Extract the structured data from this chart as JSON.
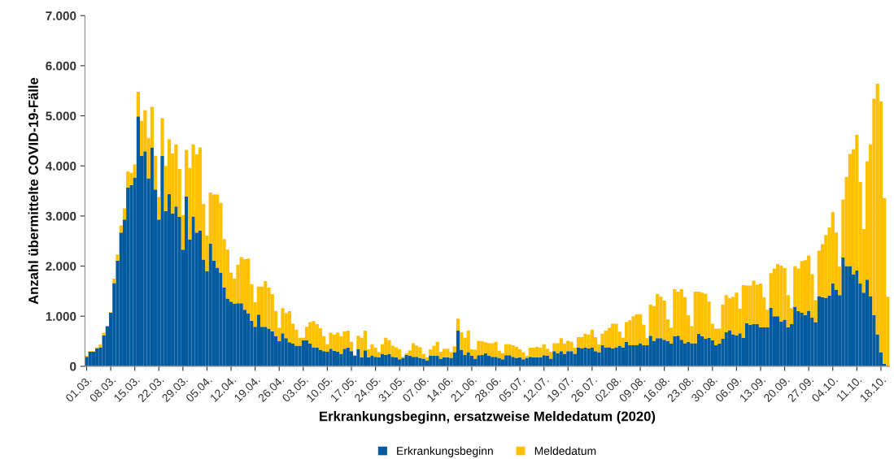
{
  "chart_data": {
    "type": "bar",
    "stacked": true,
    "xlabel": "Erkrankungsbeginn, ersatzweise Meldedatum (2020)",
    "ylabel": "Anzahl übermittelte COVID-19-Fälle",
    "categories": [
      "01.03.",
      null,
      null,
      null,
      null,
      null,
      null,
      "08.03.",
      null,
      null,
      null,
      null,
      null,
      null,
      "15.03.",
      null,
      null,
      null,
      null,
      null,
      null,
      "22.03.",
      null,
      null,
      null,
      null,
      null,
      null,
      "29.03.",
      null,
      null,
      null,
      null,
      null,
      null,
      "05.04.",
      null,
      null,
      null,
      null,
      null,
      null,
      "12.04.",
      null,
      null,
      null,
      null,
      null,
      null,
      "19.04.",
      null,
      null,
      null,
      null,
      null,
      null,
      "26.04.",
      null,
      null,
      null,
      null,
      null,
      null,
      "03.05.",
      null,
      null,
      null,
      null,
      null,
      null,
      "10.05.",
      null,
      null,
      null,
      null,
      null,
      null,
      "17.05.",
      null,
      null,
      null,
      null,
      null,
      null,
      "24.05.",
      null,
      null,
      null,
      null,
      null,
      null,
      "31.05.",
      null,
      null,
      null,
      null,
      null,
      null,
      "07.06.",
      null,
      null,
      null,
      null,
      null,
      null,
      "14.06.",
      null,
      null,
      null,
      null,
      null,
      null,
      "21.06.",
      null,
      null,
      null,
      null,
      null,
      null,
      "28.06.",
      null,
      null,
      null,
      null,
      null,
      null,
      "05.07.",
      null,
      null,
      null,
      null,
      null,
      null,
      "12.07.",
      null,
      null,
      null,
      null,
      null,
      null,
      "19.07.",
      null,
      null,
      null,
      null,
      null,
      null,
      "26.07.",
      null,
      null,
      null,
      null,
      null,
      null,
      "02.08.",
      null,
      null,
      null,
      null,
      null,
      null,
      "09.08.",
      null,
      null,
      null,
      null,
      null,
      null,
      "16.08.",
      null,
      null,
      null,
      null,
      null,
      null,
      "23.08.",
      null,
      null,
      null,
      null,
      null,
      null,
      "30.08.",
      null,
      null,
      null,
      null,
      null,
      null,
      "06.09.",
      null,
      null,
      null,
      null,
      null,
      null,
      "13.09.",
      null,
      null,
      null,
      null,
      null,
      null,
      "20.09.",
      null,
      null,
      null,
      null,
      null,
      null,
      "27.09.",
      null,
      null,
      null,
      null,
      null,
      null,
      "04.10.",
      null,
      null,
      null,
      null,
      null,
      null,
      "11.10.",
      null,
      null,
      null,
      null,
      null,
      null,
      "18.10.",
      null,
      null
    ],
    "series": [
      {
        "name": "Erkrankungsbeginn",
        "color": "#045a9f",
        "values": [
          190,
          290,
          290,
          360,
          380,
          620,
          800,
          1070,
          1660,
          2110,
          2670,
          2930,
          3570,
          3620,
          3770,
          4990,
          4200,
          4290,
          3750,
          4370,
          3530,
          2930,
          4200,
          3100,
          3440,
          3050,
          3190,
          2980,
          2330,
          3390,
          2530,
          2990,
          2670,
          2710,
          2130,
          1900,
          2450,
          2110,
          1970,
          1870,
          1570,
          1350,
          1290,
          1250,
          1260,
          1260,
          1130,
          1050,
          910,
          790,
          1030,
          790,
          790,
          750,
          700,
          600,
          500,
          660,
          560,
          480,
          450,
          410,
          410,
          520,
          520,
          450,
          380,
          370,
          330,
          300,
          290,
          350,
          310,
          290,
          250,
          350,
          370,
          300,
          210,
          340,
          180,
          320,
          180,
          210,
          190,
          180,
          250,
          230,
          250,
          190,
          180,
          140,
          170,
          230,
          210,
          190,
          190,
          170,
          150,
          120,
          210,
          210,
          210,
          150,
          180,
          180,
          170,
          280,
          710,
          330,
          230,
          280,
          210,
          150,
          220,
          230,
          260,
          210,
          190,
          190,
          170,
          140,
          220,
          220,
          190,
          170,
          180,
          140,
          170,
          190,
          180,
          180,
          180,
          220,
          210,
          150,
          300,
          260,
          300,
          250,
          300,
          300,
          250,
          370,
          360,
          370,
          360,
          370,
          300,
          280,
          420,
          380,
          380,
          360,
          380,
          410,
          370,
          490,
          420,
          420,
          420,
          460,
          420,
          420,
          610,
          510,
          560,
          560,
          530,
          500,
          450,
          600,
          610,
          530,
          460,
          490,
          460,
          460,
          650,
          600,
          550,
          570,
          520,
          420,
          450,
          550,
          680,
          720,
          640,
          620,
          660,
          570,
          860,
          830,
          840,
          840,
          780,
          780,
          780,
          1170,
          1000,
          1000,
          890,
          930,
          780,
          840,
          1190,
          1100,
          1070,
          1020,
          1110,
          970,
          880,
          1400,
          1380,
          1370,
          1410,
          1650,
          1530,
          1420,
          2170,
          2000,
          2000,
          1830,
          1910,
          1650,
          1470,
          1730,
          1400,
          1020,
          640,
          280,
          50,
          0
        ]
      },
      {
        "name": "Meldedatum",
        "color": "#ffc000",
        "values": [
          20,
          10,
          10,
          20,
          50,
          50,
          10,
          10,
          90,
          120,
          140,
          220,
          320,
          240,
          260,
          490,
          700,
          820,
          810,
          810,
          670,
          450,
          750,
          900,
          1090,
          1200,
          1240,
          960,
          690,
          930,
          1430,
          1440,
          1560,
          1660,
          1110,
          710,
          1020,
          1320,
          1460,
          1390,
          970,
          980,
          580,
          500,
          770,
          920,
          1010,
          1100,
          730,
          490,
          560,
          800,
          910,
          820,
          740,
          500,
          270,
          500,
          500,
          620,
          400,
          320,
          160,
          50,
          270,
          430,
          520,
          470,
          430,
          300,
          150,
          320,
          320,
          380,
          350,
          350,
          340,
          190,
          20,
          270,
          390,
          390,
          160,
          230,
          180,
          100,
          190,
          340,
          270,
          220,
          200,
          200,
          20,
          30,
          110,
          270,
          220,
          210,
          100,
          60,
          130,
          200,
          280,
          140,
          170,
          170,
          110,
          120,
          240,
          350,
          340,
          430,
          130,
          180,
          290,
          270,
          220,
          250,
          270,
          300,
          140,
          120,
          220,
          220,
          230,
          220,
          160,
          140,
          40,
          180,
          190,
          210,
          190,
          220,
          140,
          140,
          160,
          200,
          260,
          200,
          210,
          190,
          120,
          210,
          220,
          280,
          270,
          360,
          280,
          160,
          230,
          330,
          390,
          490,
          470,
          280,
          200,
          390,
          500,
          580,
          620,
          580,
          410,
          140,
          620,
          690,
          880,
          830,
          780,
          440,
          320,
          940,
          880,
          1010,
          920,
          530,
          340,
          1030,
          840,
          870,
          900,
          720,
          330,
          330,
          300,
          680,
          740,
          640,
          750,
          850,
          490,
          1050,
          750,
          780,
          870,
          790,
          870,
          600,
          350,
          690,
          950,
          1040,
          1120,
          1030,
          640,
          320,
          810,
          850,
          1030,
          1100,
          1100,
          870,
          440,
          910,
          1060,
          1250,
          1360,
          1430,
          1140,
          570,
          1160,
          1780,
          2240,
          2500,
          2710,
          2030,
          1270,
          2360,
          3030,
          4320,
          5000,
          5010,
          3310,
          1390
        ]
      }
    ],
    "ylim": [
      0,
      7000
    ],
    "yticks": [
      {
        "value": 0,
        "label": "0"
      },
      {
        "value": 1000,
        "label": "1.000"
      },
      {
        "value": 2000,
        "label": "2.000"
      },
      {
        "value": 3000,
        "label": "3.000"
      },
      {
        "value": 4000,
        "label": "4.000"
      },
      {
        "value": 5000,
        "label": "5.000"
      },
      {
        "value": 6000,
        "label": "6.000"
      },
      {
        "value": 7000,
        "label": "7.000"
      }
    ],
    "grid": false,
    "legend": "bottom"
  }
}
